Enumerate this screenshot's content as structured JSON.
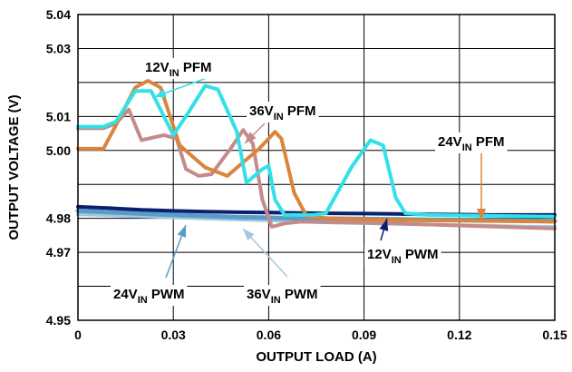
{
  "chart_data": {
    "type": "line",
    "xlabel": "OUTPUT LOAD (A)",
    "ylabel": "OUTPUT VOLTAGE (V)",
    "xlim": [
      0,
      0.15
    ],
    "ylim": [
      4.95,
      5.04
    ],
    "x_ticks": [
      "0",
      "0.03",
      "0.06",
      "0.09",
      "0.12",
      "0.15"
    ],
    "x_tick_values": [
      0,
      0.03,
      0.06,
      0.09,
      0.12,
      0.15
    ],
    "y_ticks": [
      "4.95",
      "4.97",
      "4.98",
      "5.00",
      "5.01",
      "5.03",
      "5.04"
    ],
    "y_tick_values": [
      4.95,
      4.96,
      4.97,
      4.98,
      4.99,
      5.0,
      5.01,
      5.02,
      5.03,
      5.04
    ],
    "y_tick_labels": [
      "4.95",
      "",
      "4.97",
      "4.98",
      "",
      "5.00",
      "5.01",
      "",
      "5.03",
      "5.04"
    ],
    "grid": true,
    "series": [
      {
        "name": "12VIN PWM",
        "color": "#0a1f6e",
        "points": [
          [
            0,
            4.9834
          ],
          [
            0.01,
            4.983
          ],
          [
            0.02,
            4.9825
          ],
          [
            0.03,
            4.9822
          ],
          [
            0.04,
            4.982
          ],
          [
            0.05,
            4.9818
          ],
          [
            0.06,
            4.9817
          ],
          [
            0.07,
            4.9816
          ],
          [
            0.08,
            4.9815
          ],
          [
            0.09,
            4.9814
          ],
          [
            0.1,
            4.9813
          ],
          [
            0.11,
            4.9812
          ],
          [
            0.12,
            4.9811
          ],
          [
            0.13,
            4.981
          ],
          [
            0.14,
            4.981
          ],
          [
            0.15,
            4.981
          ]
        ]
      },
      {
        "name": "24VIN PWM",
        "color": "#5b9bc8",
        "points": [
          [
            0,
            4.9822
          ],
          [
            0.01,
            4.9818
          ],
          [
            0.02,
            4.9814
          ],
          [
            0.03,
            4.981
          ],
          [
            0.04,
            4.9807
          ],
          [
            0.05,
            4.9804
          ],
          [
            0.06,
            4.9802
          ],
          [
            0.07,
            4.98
          ],
          [
            0.08,
            4.9799
          ],
          [
            0.09,
            4.9798
          ],
          [
            0.1,
            4.9797
          ],
          [
            0.11,
            4.9796
          ],
          [
            0.12,
            4.9795
          ],
          [
            0.13,
            4.9794
          ],
          [
            0.14,
            4.9793
          ],
          [
            0.15,
            4.9792
          ]
        ]
      },
      {
        "name": "36VIN PWM",
        "color": "#a0c8e0",
        "points": [
          [
            0,
            4.9812
          ],
          [
            0.01,
            4.9809
          ],
          [
            0.02,
            4.9806
          ],
          [
            0.03,
            4.9803
          ],
          [
            0.04,
            4.98
          ],
          [
            0.05,
            4.9797
          ],
          [
            0.06,
            4.9794
          ],
          [
            0.07,
            4.9791
          ],
          [
            0.08,
            4.9788
          ],
          [
            0.09,
            4.9786
          ],
          [
            0.1,
            4.9784
          ],
          [
            0.11,
            4.9782
          ],
          [
            0.12,
            4.978
          ],
          [
            0.13,
            4.9778
          ],
          [
            0.14,
            4.9776
          ],
          [
            0.15,
            4.9775
          ]
        ]
      },
      {
        "name": "12VIN PFM",
        "color": "#33e0e8",
        "points": [
          [
            0,
            5.007
          ],
          [
            0.008,
            5.007
          ],
          [
            0.012,
            5.0085
          ],
          [
            0.018,
            5.0175
          ],
          [
            0.023,
            5.0175
          ],
          [
            0.03,
            5.0045
          ],
          [
            0.035,
            5.0115
          ],
          [
            0.04,
            5.019
          ],
          [
            0.044,
            5.018
          ],
          [
            0.05,
            5.0055
          ],
          [
            0.053,
            4.9905
          ],
          [
            0.058,
            4.9945
          ],
          [
            0.06,
            4.9955
          ],
          [
            0.062,
            4.9855
          ],
          [
            0.065,
            4.981
          ],
          [
            0.07,
            4.981
          ],
          [
            0.074,
            4.981
          ],
          [
            0.078,
            4.9815
          ],
          [
            0.086,
            4.995
          ],
          [
            0.092,
            5.003
          ],
          [
            0.096,
            5.0015
          ],
          [
            0.1,
            4.986
          ],
          [
            0.103,
            4.9815
          ],
          [
            0.11,
            4.981
          ],
          [
            0.15,
            4.9805
          ]
        ]
      },
      {
        "name": "24VIN PFM",
        "color": "#d9853b",
        "points": [
          [
            0,
            5.0005
          ],
          [
            0.008,
            5.0005
          ],
          [
            0.012,
            5.0075
          ],
          [
            0.018,
            5.0185
          ],
          [
            0.022,
            5.0205
          ],
          [
            0.026,
            5.0185
          ],
          [
            0.032,
            5.0015
          ],
          [
            0.04,
            4.995
          ],
          [
            0.047,
            4.9925
          ],
          [
            0.052,
            4.9965
          ],
          [
            0.057,
            5.0005
          ],
          [
            0.062,
            5.0055
          ],
          [
            0.064,
            5.0035
          ],
          [
            0.068,
            4.9875
          ],
          [
            0.072,
            4.9805
          ],
          [
            0.08,
            4.98
          ],
          [
            0.1,
            4.9795
          ],
          [
            0.15,
            4.979
          ]
        ]
      },
      {
        "name": "36VIN PFM",
        "color": "#c48b8b",
        "points": [
          [
            0,
            5.0065
          ],
          [
            0.008,
            5.0065
          ],
          [
            0.012,
            5.008
          ],
          [
            0.016,
            5.012
          ],
          [
            0.02,
            5.003
          ],
          [
            0.027,
            5.0045
          ],
          [
            0.031,
            5.0035
          ],
          [
            0.034,
            4.9945
          ],
          [
            0.038,
            4.9925
          ],
          [
            0.042,
            4.993
          ],
          [
            0.048,
            5.0005
          ],
          [
            0.052,
            5.006
          ],
          [
            0.055,
            5.002
          ],
          [
            0.058,
            4.9855
          ],
          [
            0.061,
            4.9775
          ],
          [
            0.065,
            4.9785
          ],
          [
            0.07,
            4.979
          ],
          [
            0.1,
            4.9785
          ],
          [
            0.15,
            4.977
          ]
        ]
      }
    ],
    "annotations": [
      {
        "main": "12V",
        "sub": "IN",
        "tail": " PFM",
        "text": "12VIN PFM",
        "color": "#33e0e8"
      },
      {
        "main": "36V",
        "sub": "IN",
        "tail": " PFM",
        "text": "36VIN PFM",
        "color": "#c48b8b"
      },
      {
        "main": "24V",
        "sub": "IN",
        "tail": " PFM",
        "text": "24VIN PFM",
        "color": "#d9853b"
      },
      {
        "main": "12V",
        "sub": "IN",
        "tail": " PWM",
        "text": "12VIN PWM",
        "color": "#0a1f6e"
      },
      {
        "main": "24V",
        "sub": "IN",
        "tail": " PWM",
        "text": "24VIN PWM",
        "color": "#5b9bc8"
      },
      {
        "main": "36V",
        "sub": "IN",
        "tail": " PWM",
        "text": "36VIN PWM",
        "color": "#a0c8e0"
      }
    ]
  }
}
